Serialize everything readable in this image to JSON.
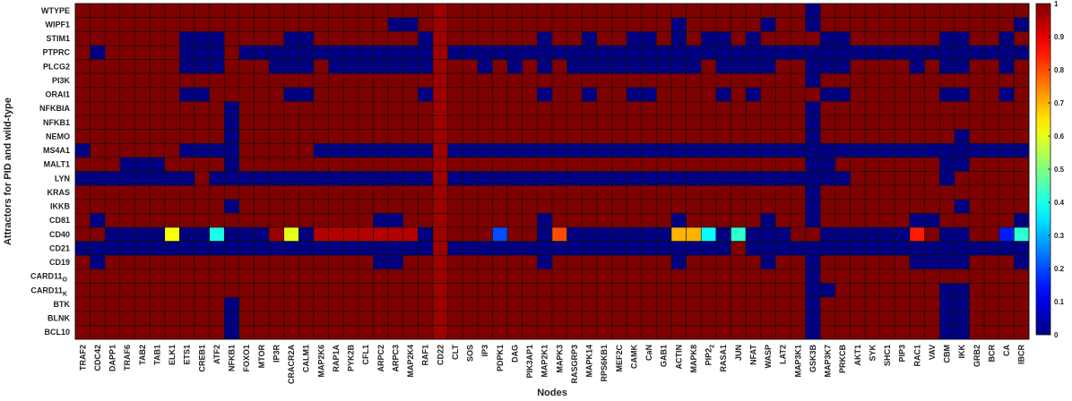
{
  "chart_data": {
    "type": "heatmap",
    "title": "",
    "xlabel": "Nodes",
    "ylabel": "Attractors for PID and wild-type",
    "x_categories": [
      "TRAF2",
      "CDC42",
      "DAPP1",
      "TRAF6",
      "TAB2",
      "TAB1",
      "ELK1",
      "ETS1",
      "CREB1",
      "ATF2",
      "NFKB1",
      "FOXO1",
      "MTOR",
      "IP3R",
      "CRACR2A",
      "CALM1",
      "MAP2K6",
      "RAP1A",
      "PYK2B",
      "CFL1",
      "ARPC2",
      "ARPC3",
      "MAP2K4",
      "RAF1",
      "CD22",
      "CLT",
      "SOS",
      "IP3",
      "PDPK1",
      "DAG",
      "PIK3AP1",
      "MAP2K1",
      "MAPK3",
      "RASGRP3",
      "MAPK14",
      "RPS6KB1",
      "MEF2C",
      "CAMK",
      "CaN",
      "GAB1",
      "ACTIN",
      "MAPK8",
      "PIP2",
      "RASA1",
      "JUN",
      "NFAT",
      "WASP",
      "LAT2",
      "MAP3K1",
      "GSK3B",
      "MAP3K7",
      "PRKCB",
      "AKT1",
      "SYK",
      "SHC1",
      "PIP3",
      "RAC1",
      "VAV",
      "CBM",
      "IKK",
      "GRB2",
      "BCR",
      "CA",
      "IBCR"
    ],
    "x_subscripts": {
      "PIP2": "2"
    },
    "y_categories": [
      "WTYPE",
      "WIPF1",
      "STIM1",
      "PTPRC",
      "PLCG2",
      "PI3K",
      "ORAI1",
      "NFKBIA",
      "NFKB1",
      "NEMO",
      "MS4A1",
      "MALT1",
      "LYN",
      "KRAS",
      "IKKB",
      "CD81",
      "CD40",
      "CD21",
      "CD19",
      "CARD11",
      "CARD11",
      "BTK",
      "BLNK",
      "BCL10"
    ],
    "y_subscripts": {
      "19": "O",
      "20": "K"
    },
    "value_range": [
      0,
      1
    ],
    "colorbar_ticks": [
      0,
      0.1,
      0.2,
      0.3,
      0.4,
      0.5,
      0.6,
      0.7,
      0.8,
      0.9,
      1
    ],
    "colormap": "jet",
    "default_value": 1,
    "zero_cells": {
      "WTYPE": [
        "GSK3B"
      ],
      "WIPF1": [
        "ARPC3",
        "MAP2K4",
        "ACTIN",
        "WASP",
        "GSK3B",
        "IBCR"
      ],
      "STIM1": [
        "ETS1",
        "CREB1",
        "ATF2",
        "CRACR2A",
        "CALM1",
        "RAF1",
        "MAP2K1",
        "MAPK14",
        "CAMK",
        "CaN",
        "ACTIN",
        "PIP2",
        "RASA1",
        "NFAT",
        "MAP3K7",
        "PRKCB",
        "CBM",
        "IKK",
        "CA"
      ],
      "PTPRC": [
        "CDC42",
        "ETS1",
        "CREB1",
        "ATF2",
        "FOXO1",
        "MTOR",
        "IP3R",
        "CRACR2A",
        "CALM1",
        "MAP2K6",
        "RAP1A",
        "PYK2B",
        "CFL1",
        "ARPC2",
        "ARPC3",
        "MAP2K4",
        "RAF1",
        "CLT",
        "SOS",
        "IP3",
        "PDPK1",
        "DAG",
        "PIK3AP1",
        "MAP2K1",
        "MAPK3",
        "RASGRP3",
        "MAPK14",
        "RPS6KB1",
        "MEF2C",
        "CAMK",
        "CaN",
        "GAB1",
        "ACTIN",
        "MAPK8",
        "PIP2",
        "RASA1",
        "JUN",
        "NFAT",
        "WASP",
        "LAT2",
        "MAP3K1",
        "GSK3B",
        "MAP3K7",
        "PRKCB",
        "AKT1",
        "SYK",
        "SHC1",
        "PIP3",
        "RAC1",
        "VAV",
        "CBM",
        "IKK",
        "GRB2",
        "BCR",
        "CA",
        "IBCR"
      ],
      "PLCG2": [
        "ETS1",
        "CREB1",
        "ATF2",
        "IP3R",
        "CRACR2A",
        "CALM1",
        "RAP1A",
        "PYK2B",
        "CFL1",
        "ARPC2",
        "ARPC3",
        "MAP2K4",
        "RAF1",
        "IP3",
        "DAG",
        "MAP2K1",
        "RASGRP3",
        "MAPK14",
        "RPS6KB1",
        "MEF2C",
        "CAMK",
        "CaN",
        "GAB1",
        "ACTIN",
        "MAPK8",
        "RASA1",
        "JUN",
        "NFAT",
        "WASP",
        "GSK3B",
        "MAP3K7",
        "PRKCB",
        "RAC1",
        "CBM",
        "IKK",
        "CA"
      ],
      "PI3K": [
        "GSK3B"
      ],
      "ORAI1": [
        "ETS1",
        "CREB1",
        "CRACR2A",
        "CALM1",
        "RAF1",
        "MAP2K1",
        "MAPK14",
        "CAMK",
        "CaN",
        "RASA1",
        "NFAT",
        "MAP3K7",
        "PRKCB",
        "CBM",
        "IKK",
        "CA"
      ],
      "NFKBIA": [
        "NFKB1",
        "GSK3B"
      ],
      "NFKB1": [
        "NFKB1",
        "GSK3B"
      ],
      "NEMO": [
        "NFKB1",
        "GSK3B",
        "IKK"
      ],
      "MS4A1": [
        "TRAF2",
        "ETS1",
        "CREB1",
        "ATF2",
        "NFKB1",
        "MAP2K6",
        "RAP1A",
        "PYK2B",
        "CFL1",
        "ARPC2",
        "ARPC3",
        "MAP2K4",
        "RAF1",
        "CLT",
        "SOS",
        "IP3",
        "PDPK1",
        "DAG",
        "PIK3AP1",
        "MAP2K1",
        "MAPK3",
        "RASGRP3",
        "MAPK14",
        "RPS6KB1",
        "MEF2C",
        "CAMK",
        "CaN",
        "GAB1",
        "ACTIN",
        "MAPK8",
        "PIP2",
        "RASA1",
        "JUN",
        "NFAT",
        "WASP",
        "LAT2",
        "MAP3K1",
        "GSK3B",
        "MAP3K7",
        "PRKCB",
        "AKT1",
        "SYK",
        "SHC1",
        "PIP3",
        "RAC1",
        "VAV",
        "CBM",
        "IKK",
        "GRB2",
        "BCR",
        "CA",
        "IBCR"
      ],
      "MALT1": [
        "TRAF6",
        "TAB2",
        "TAB1",
        "NFKB1",
        "GSK3B",
        "MAP3K7",
        "CBM",
        "IKK"
      ],
      "LYN": [
        "TRAF2",
        "CDC42",
        "DAPP1",
        "TRAF6",
        "TAB2",
        "TAB1",
        "ELK1",
        "ETS1",
        "ATF2",
        "NFKB1",
        "FOXO1",
        "MTOR",
        "IP3R",
        "CRACR2A",
        "CALM1",
        "MAP2K6",
        "RAP1A",
        "PYK2B",
        "CFL1",
        "ARPC2",
        "ARPC3",
        "MAP2K4",
        "RAF1",
        "CLT",
        "SOS",
        "IP3",
        "PDPK1",
        "DAG",
        "PIK3AP1",
        "MAP2K1",
        "MAPK3",
        "RASGRP3",
        "MAPK14",
        "RPS6KB1",
        "MEF2C",
        "CAMK",
        "CaN",
        "GAB1",
        "ACTIN",
        "MAPK8",
        "PIP2",
        "RASA1",
        "JUN",
        "NFAT",
        "WASP",
        "LAT2",
        "MAP3K1",
        "GSK3B",
        "MAP3K7",
        "PRKCB",
        "CBM"
      ],
      "KRAS": [
        "GSK3B"
      ],
      "IKKB": [
        "NFKB1",
        "GSK3B",
        "IKK"
      ],
      "CD81": [
        "CDC42",
        "ARPC2",
        "ARPC3",
        "MAP2K1",
        "ACTIN",
        "WASP",
        "GSK3B",
        "RAC1",
        "VAV",
        "IBCR"
      ],
      "CD40": [
        "DAPP1",
        "TRAF6",
        "TAB2",
        "TAB1",
        "ETS1",
        "CREB1",
        "NFKB1",
        "FOXO1",
        "MTOR",
        "CALM1",
        "RAF1",
        "MAP2K1",
        "RASGRP3",
        "MAPK14",
        "RPS6KB1",
        "MEF2C",
        "CAMK",
        "CaN",
        "GAB1",
        "RASA1",
        "NFAT",
        "WASP",
        "LAT2",
        "MAP3K7",
        "PRKCB",
        "AKT1",
        "SYK",
        "SHC1",
        "PIP3",
        "CBM",
        "IKK"
      ],
      "CD21": [
        "TRAF2",
        "CDC42",
        "DAPP1",
        "TRAF6",
        "TAB2",
        "TAB1",
        "ELK1",
        "ETS1",
        "CREB1",
        "ATF2",
        "NFKB1",
        "FOXO1",
        "MTOR",
        "IP3R",
        "CRACR2A",
        "CALM1",
        "MAP2K6",
        "RAP1A",
        "PYK2B",
        "CFL1",
        "ARPC2",
        "ARPC3",
        "MAP2K4",
        "RAF1",
        "CLT",
        "SOS",
        "IP3",
        "PDPK1",
        "DAG",
        "PIK3AP1",
        "MAP2K1",
        "MAPK3",
        "RASGRP3",
        "MAPK14",
        "RPS6KB1",
        "MEF2C",
        "CAMK",
        "CaN",
        "GAB1",
        "ACTIN",
        "MAPK8",
        "PIP2",
        "RASA1",
        "NFAT",
        "WASP",
        "LAT2",
        "MAP3K1",
        "GSK3B",
        "MAP3K7",
        "PRKCB",
        "AKT1",
        "SYK",
        "SHC1",
        "PIP3",
        "RAC1",
        "VAV",
        "CBM",
        "IKK",
        "GRB2",
        "BCR",
        "CA",
        "IBCR"
      ],
      "CD19": [
        "CDC42",
        "ARPC2",
        "ARPC3",
        "MAP2K1",
        "ACTIN",
        "WASP",
        "GSK3B",
        "RAC1",
        "VAV",
        "CBM",
        "IKK",
        "IBCR"
      ],
      "CARD11O": [
        "GSK3B"
      ],
      "CARD11K": [
        "GSK3B",
        "MAP3K7",
        "CBM",
        "IKK"
      ],
      "BTK": [
        "NFKB1",
        "GSK3B",
        "CBM",
        "IKK"
      ],
      "BLNK": [
        "NFKB1",
        "GSK3B",
        "CBM",
        "IKK"
      ],
      "BCL10": [
        "NFKB1",
        "GSK3B",
        "CBM",
        "IKK"
      ]
    },
    "partial_cells": [
      {
        "row": "CD40",
        "col": "TRAF2",
        "value": 1
      },
      {
        "row": "CD40",
        "col": "ELK1",
        "value": 0.62
      },
      {
        "row": "CD40",
        "col": "ATF2",
        "value": 0.4
      },
      {
        "row": "CD40",
        "col": "IP3R",
        "value": 0.97
      },
      {
        "row": "CD40",
        "col": "CRACR2A",
        "value": 0.6
      },
      {
        "row": "CD40",
        "col": "MAP2K6",
        "value": 0.95
      },
      {
        "row": "CD40",
        "col": "RAP1A",
        "value": 0.95
      },
      {
        "row": "CD40",
        "col": "PYK2B",
        "value": 0.95
      },
      {
        "row": "CD40",
        "col": "CFL1",
        "value": 0.95
      },
      {
        "row": "CD40",
        "col": "ARPC2",
        "value": 0.95
      },
      {
        "row": "CD40",
        "col": "ARPC3",
        "value": 0.95
      },
      {
        "row": "CD40",
        "col": "MAP2K4",
        "value": 0.95
      },
      {
        "row": "CD40",
        "col": "PDPK1",
        "value": 0.2
      },
      {
        "row": "CD40",
        "col": "MAPK3",
        "value": 0.8
      },
      {
        "row": "CD40",
        "col": "ACTIN",
        "value": 0.7
      },
      {
        "row": "CD40",
        "col": "MAPK8",
        "value": 0.7
      },
      {
        "row": "CD40",
        "col": "PIP2",
        "value": 0.38
      },
      {
        "row": "CD40",
        "col": "JUN",
        "value": 0.42
      },
      {
        "row": "CD40",
        "col": "RAC1",
        "value": 0.85
      },
      {
        "row": "CD40",
        "col": "CA",
        "value": 0.15
      },
      {
        "row": "CD40",
        "col": "IBCR",
        "value": 0.42
      }
    ],
    "highlight_column": {
      "col": "CD22",
      "value": 0.97
    }
  }
}
